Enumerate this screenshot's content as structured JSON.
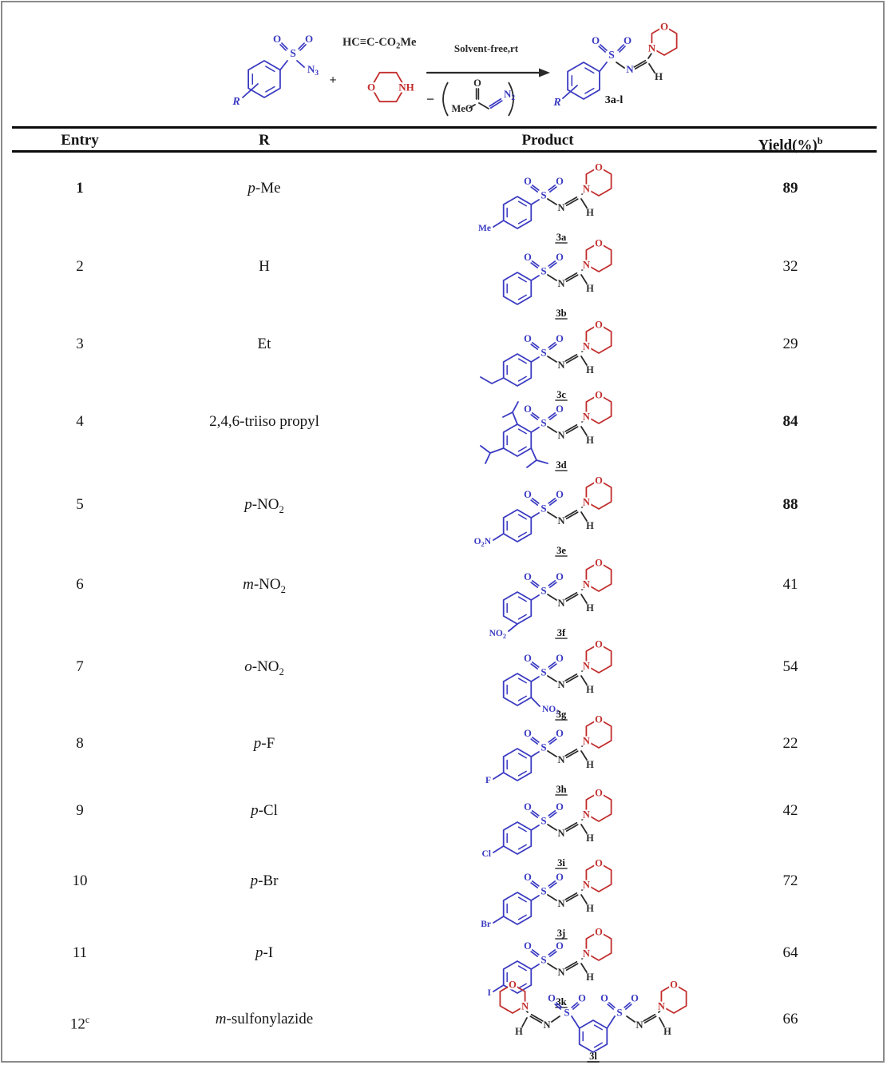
{
  "colors": {
    "blue": "#3a3ac2",
    "red": "#c22d2d",
    "dark": "#2a2a2a",
    "black": "#111111",
    "frame": "#8b8b8b"
  },
  "scheme": {
    "r_label": "R",
    "sulfonyl_s": "S",
    "oxygen": "O",
    "azide_label": "N3",
    "plus": "+",
    "alkyne_main": "HC≡C-CO",
    "alkyne_sub": "2",
    "alkyne_tail": "Me",
    "morpholine_o": "O",
    "morpholine_nh": "NH",
    "conditions": "Solvent-free,rt",
    "minus": "−",
    "byproduct_meo": "MeO",
    "byproduct_o": "O",
    "byproduct_n2": "N2",
    "imine_n": "N",
    "imine_h": "H",
    "product_label": "3a-l"
  },
  "table": {
    "headers": {
      "entry": "Entry",
      "r": "R",
      "product": "Product",
      "yield_main": "Yield(%)",
      "yield_sup": "b"
    },
    "rows": [
      {
        "entry": "1",
        "entry_sup": "",
        "entry_bold": true,
        "r_prefix": "p",
        "r_main": "-Me",
        "r_sub": "",
        "product_label": "3a",
        "substituent": "Me",
        "sub_pos": "para",
        "bis": false,
        "yield": "89",
        "yield_bold": true
      },
      {
        "entry": "2",
        "entry_sup": "",
        "entry_bold": false,
        "r_prefix": "",
        "r_main": "H",
        "r_sub": "",
        "product_label": "3b",
        "substituent": "",
        "sub_pos": "none",
        "bis": false,
        "yield": "32",
        "yield_bold": false
      },
      {
        "entry": "3",
        "entry_sup": "",
        "entry_bold": false,
        "r_prefix": "",
        "r_main": "Et",
        "r_sub": "",
        "product_label": "3c",
        "substituent": "",
        "sub_pos": "ethyl",
        "bis": false,
        "yield": "29",
        "yield_bold": false
      },
      {
        "entry": "4",
        "entry_sup": "",
        "entry_bold": false,
        "r_prefix": "",
        "r_main": "2,4,6-triiso propyl",
        "r_sub": "",
        "product_label": "3d",
        "substituent": "",
        "sub_pos": "triiso",
        "bis": false,
        "yield": "84",
        "yield_bold": true
      },
      {
        "entry": "5",
        "entry_sup": "",
        "entry_bold": false,
        "r_prefix": "p",
        "r_main": "-NO",
        "r_sub": "2",
        "product_label": "3e",
        "substituent": "O2N",
        "sub_pos": "para",
        "bis": false,
        "yield": "88",
        "yield_bold": true
      },
      {
        "entry": "6",
        "entry_sup": "",
        "entry_bold": false,
        "r_prefix": "m",
        "r_main": "-NO",
        "r_sub": "2",
        "product_label": "3f",
        "substituent": "NO2",
        "sub_pos": "meta",
        "bis": false,
        "yield": "41",
        "yield_bold": false
      },
      {
        "entry": "7",
        "entry_sup": "",
        "entry_bold": false,
        "r_prefix": "o",
        "r_main": "-NO",
        "r_sub": "2",
        "product_label": "3g",
        "substituent": "NO2",
        "sub_pos": "ortho",
        "bis": false,
        "yield": "54",
        "yield_bold": false
      },
      {
        "entry": "8",
        "entry_sup": "",
        "entry_bold": false,
        "r_prefix": "p",
        "r_main": "-F",
        "r_sub": "",
        "product_label": "3h",
        "substituent": "F",
        "sub_pos": "para",
        "bis": false,
        "yield": "22",
        "yield_bold": false
      },
      {
        "entry": "9",
        "entry_sup": "",
        "entry_bold": false,
        "r_prefix": "p",
        "r_main": "-Cl",
        "r_sub": "",
        "product_label": "3i",
        "substituent": "Cl",
        "sub_pos": "para",
        "bis": false,
        "yield": "42",
        "yield_bold": false
      },
      {
        "entry": "10",
        "entry_sup": "",
        "entry_bold": false,
        "r_prefix": "p",
        "r_main": "-Br",
        "r_sub": "",
        "product_label": "3j",
        "substituent": "Br",
        "sub_pos": "para",
        "bis": false,
        "yield": "72",
        "yield_bold": false
      },
      {
        "entry": "11",
        "entry_sup": "",
        "entry_bold": false,
        "r_prefix": "p",
        "r_main": "-I",
        "r_sub": "",
        "product_label": "3k",
        "substituent": "I",
        "sub_pos": "para",
        "bis": false,
        "yield": "64",
        "yield_bold": false
      },
      {
        "entry": "12",
        "entry_sup": "c",
        "entry_bold": false,
        "r_prefix": "m",
        "r_main": "-sulfonylazide",
        "r_sub": "",
        "product_label": "3l",
        "substituent": "",
        "sub_pos": "bis",
        "bis": true,
        "yield": "66",
        "yield_bold": false
      }
    ]
  }
}
